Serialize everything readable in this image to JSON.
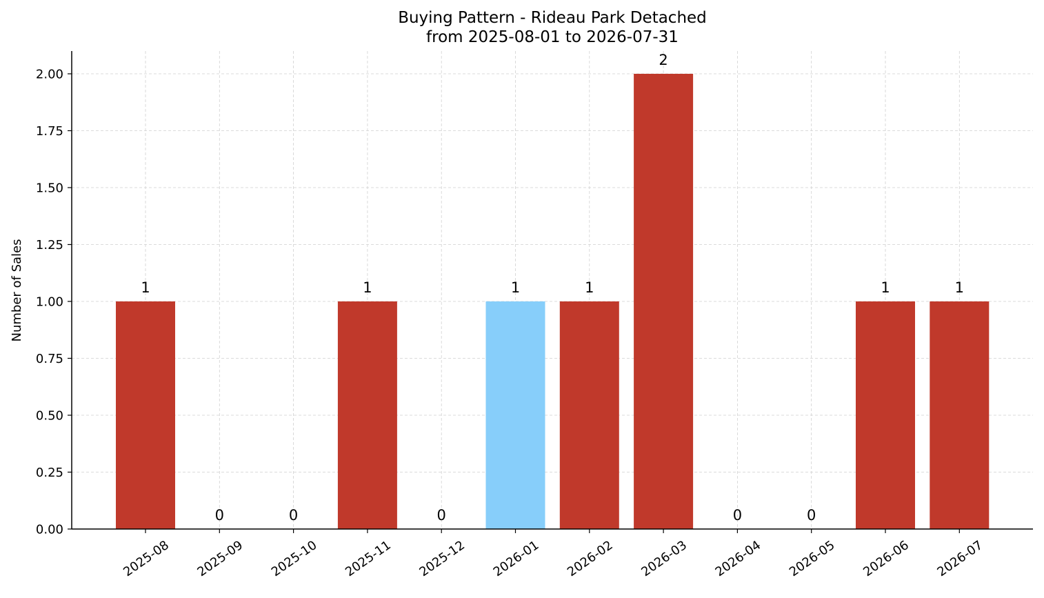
{
  "chart_data": {
    "type": "bar",
    "title_line1": "Buying Pattern - Rideau Park Detached",
    "title_line2": "from 2025-08-01 to 2026-07-31",
    "ylabel": "Number of Sales",
    "xlabel": "",
    "ylim": [
      0,
      2.1
    ],
    "yticks": [
      "0.00",
      "0.25",
      "0.50",
      "0.75",
      "1.00",
      "1.25",
      "1.50",
      "1.75",
      "2.00"
    ],
    "ytick_values": [
      0,
      0.25,
      0.5,
      0.75,
      1.0,
      1.25,
      1.5,
      1.75,
      2.0
    ],
    "grid": true,
    "categories": [
      "2025-08",
      "2025-09",
      "2025-10",
      "2025-11",
      "2025-12",
      "2026-01",
      "2026-02",
      "2026-03",
      "2026-04",
      "2026-05",
      "2026-06",
      "2026-07"
    ],
    "values": [
      1,
      0,
      0,
      1,
      0,
      1,
      1,
      2,
      0,
      0,
      1,
      1
    ],
    "bar_colors": [
      "#c0392b",
      "#c0392b",
      "#c0392b",
      "#c0392b",
      "#c0392b",
      "#87cefa",
      "#c0392b",
      "#c0392b",
      "#c0392b",
      "#c0392b",
      "#c0392b",
      "#c0392b"
    ],
    "data_labels": [
      "1",
      "0",
      "0",
      "1",
      "0",
      "1",
      "1",
      "2",
      "0",
      "0",
      "1",
      "1"
    ]
  }
}
